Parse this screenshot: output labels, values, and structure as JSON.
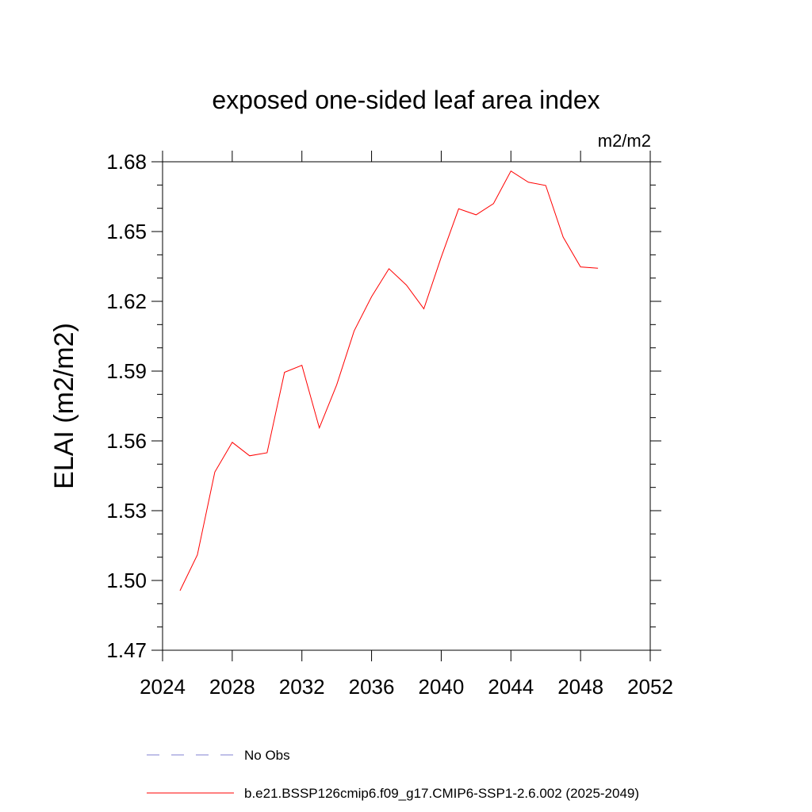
{
  "chart_data": {
    "type": "line",
    "title": "exposed one-sided leaf area index",
    "units_label": "m2/m2",
    "ylabel": "ELAI  (m2/m2)",
    "xlabel": "",
    "xlim": [
      2024,
      2052
    ],
    "ylim": [
      1.47,
      1.68
    ],
    "xticks": [
      2024,
      2028,
      2032,
      2036,
      2040,
      2044,
      2048,
      2052
    ],
    "xtick_labels": [
      "2024",
      "2028",
      "2032",
      "2036",
      "2040",
      "2044",
      "2048",
      "2052"
    ],
    "yticks": [
      1.47,
      1.5,
      1.53,
      1.56,
      1.59,
      1.62,
      1.65,
      1.68
    ],
    "ytick_labels": [
      "1.47",
      "1.50",
      "1.53",
      "1.56",
      "1.59",
      "1.62",
      "1.65",
      "1.68"
    ],
    "series": [
      {
        "name": "b.e21.BSSP126cmip6.f09_g17.CMIP6-SSP1-2.6.002 (2025-2049)",
        "color": "#ff0000",
        "x": [
          2025,
          2026,
          2027,
          2028,
          2029,
          2030,
          2031,
          2032,
          2033,
          2034,
          2035,
          2036,
          2037,
          2038,
          2039,
          2040,
          2041,
          2042,
          2043,
          2044,
          2045,
          2046,
          2047,
          2048,
          2049
        ],
        "values": [
          1.4956,
          1.511,
          1.5466,
          1.5594,
          1.5536,
          1.5549,
          1.5895,
          1.5925,
          1.5656,
          1.5841,
          1.6073,
          1.622,
          1.634,
          1.627,
          1.6168,
          1.639,
          1.6598,
          1.6572,
          1.662,
          1.676,
          1.6712,
          1.6698,
          1.6476,
          1.6348,
          1.6342
        ]
      }
    ],
    "legend": [
      {
        "label": "No Obs",
        "color": "#8080d0",
        "style": "dashed"
      },
      {
        "label": "b.e21.BSSP126cmip6.f09_g17.CMIP6-SSP1-2.6.002 (2025-2049)",
        "color": "#ff0000",
        "style": "solid"
      }
    ]
  }
}
